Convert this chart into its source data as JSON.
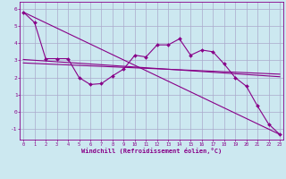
{
  "xlabel": "Windchill (Refroidissement éolien,°C)",
  "bg_color": "#cce8f0",
  "grid_color": "#aaaacc",
  "line_color": "#880088",
  "x_ticks": [
    0,
    1,
    2,
    3,
    4,
    5,
    6,
    7,
    8,
    9,
    10,
    11,
    12,
    13,
    14,
    15,
    16,
    17,
    18,
    19,
    20,
    21,
    22,
    23
  ],
  "y_ticks": [
    -1,
    0,
    1,
    2,
    3,
    4,
    5,
    6
  ],
  "ylim": [
    -1.6,
    6.4
  ],
  "xlim": [
    -0.3,
    23.3
  ],
  "series_main": {
    "x": [
      0,
      1,
      2,
      3,
      4,
      5,
      6,
      7,
      8,
      9,
      10,
      11,
      12,
      13,
      14,
      15,
      16,
      17,
      18,
      19,
      20,
      21,
      22,
      23
    ],
    "y": [
      5.8,
      5.2,
      3.1,
      3.1,
      3.1,
      2.0,
      1.6,
      1.65,
      2.1,
      2.5,
      3.3,
      3.2,
      3.9,
      3.9,
      4.25,
      3.3,
      3.6,
      3.5,
      2.8,
      2.0,
      1.5,
      0.35,
      -0.7,
      -1.3
    ]
  },
  "series_diag": {
    "x": [
      0,
      23
    ],
    "y": [
      5.8,
      -1.3
    ]
  },
  "series_flat1": {
    "x": [
      0,
      23
    ],
    "y": [
      3.05,
      2.05
    ]
  },
  "series_flat2": {
    "x": [
      0,
      23
    ],
    "y": [
      2.85,
      2.2
    ]
  }
}
